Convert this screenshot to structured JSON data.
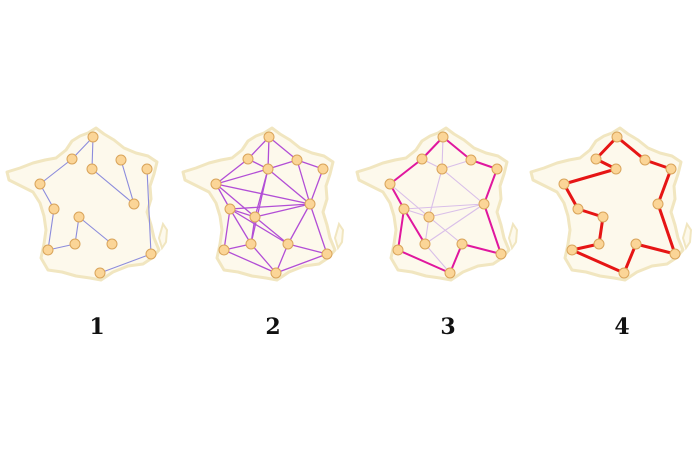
{
  "colors": {
    "map_fill": "#fdf9ec",
    "map_stroke": "#f1e6c0",
    "node_fill": "#fbd597",
    "node_stroke": "#d9a45a",
    "edge_p1": "#8c8cdc",
    "edge_p2": "#b24ed6",
    "edge_p3_light": "#d9bfe9",
    "edge_p3_strong": "#e0179e",
    "edge_p4": "#e61515"
  },
  "panels": [
    {
      "label": "1"
    },
    {
      "label": "2"
    },
    {
      "label": "3"
    },
    {
      "label": "4"
    }
  ]
}
